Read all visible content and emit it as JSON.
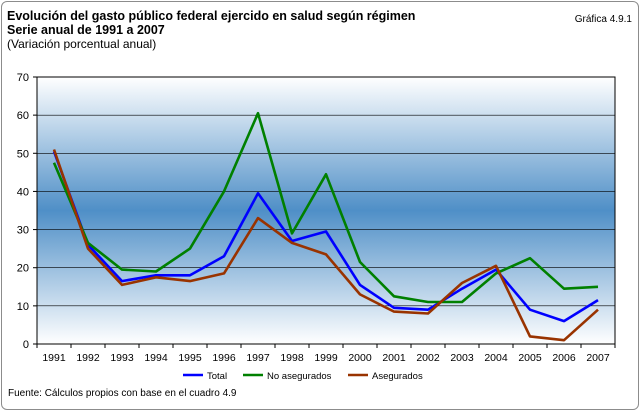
{
  "header": {
    "title_line1": "Evolución del gasto público federal ejercido en salud según régimen",
    "title_line2": "Serie anual de 1991 a 2007",
    "subtitle": "(Variación porcentual anual)",
    "badge": "Gráfica 4.9.1"
  },
  "footer": {
    "source": "Fuente: Cálculos propios con base en el cuadro 4.9"
  },
  "colors": {
    "total": "#0000ff",
    "no_asegurados": "#008000",
    "asegurados": "#993300",
    "plot_gradient_outer": "#ffffff",
    "plot_gradient_center": "#4f8fc7"
  },
  "chart_data": {
    "type": "line",
    "title": "Evolución del gasto público federal ejercido en salud según régimen",
    "subtitle": "Serie anual de 1991 a 2007",
    "ylabel": "(Variación porcentual anual)",
    "x": [
      "1991",
      "1992",
      "1993",
      "1994",
      "1995",
      "1996",
      "1997",
      "1998",
      "1999",
      "2000",
      "2001",
      "2002",
      "2003",
      "2004",
      "2005",
      "2006",
      "2007"
    ],
    "ylim": [
      0,
      70
    ],
    "yticks": [
      0,
      10,
      20,
      30,
      40,
      50,
      60,
      70
    ],
    "grid": true,
    "legend_position": "bottom",
    "series": [
      {
        "name": "Total",
        "color": "#0000ff",
        "values": [
          50.5,
          26.0,
          16.5,
          18.0,
          18.0,
          23.0,
          39.5,
          27.0,
          29.5,
          15.5,
          9.5,
          9.0,
          14.5,
          19.5,
          9.0,
          6.0,
          11.5
        ]
      },
      {
        "name": "No asegurados",
        "color": "#008000",
        "values": [
          47.5,
          26.5,
          19.5,
          19.0,
          25.0,
          40.0,
          60.5,
          29.0,
          44.5,
          21.5,
          12.5,
          11.0,
          11.0,
          18.5,
          22.5,
          14.5,
          15.0
        ]
      },
      {
        "name": "Asegurados",
        "color": "#993300",
        "values": [
          51.0,
          25.0,
          15.5,
          17.5,
          16.5,
          18.5,
          33.0,
          26.5,
          23.5,
          13.0,
          8.5,
          8.0,
          16.0,
          20.5,
          2.0,
          1.0,
          9.0
        ]
      }
    ]
  }
}
